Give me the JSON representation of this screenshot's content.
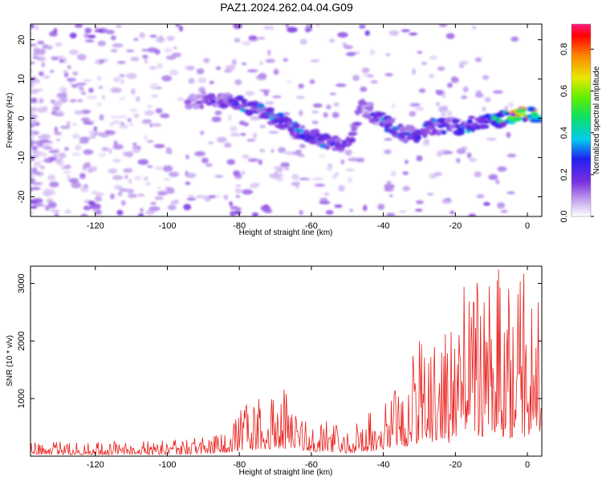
{
  "title": "PAZ1.2024.262.04.04.G09",
  "chart_data": [
    {
      "type": "heatmap",
      "xlabel": "Height of straight line (km)",
      "ylabel": "Frequency (Hz)",
      "xlim": [
        -138,
        4
      ],
      "ylim": [
        -25,
        24
      ],
      "x_ticks": [
        -120,
        -100,
        -80,
        -60,
        -40,
        -20,
        0
      ],
      "y_ticks": [
        -20,
        -10,
        0,
        10,
        20
      ],
      "colorbar": {
        "label": "Normalized spectral amplitude",
        "range": [
          0,
          0.92
        ],
        "ticks": [
          0.0,
          0.2,
          0.4,
          0.6,
          0.8
        ]
      },
      "ridge": {
        "x": [
          -92,
          -86,
          -80,
          -74,
          -68,
          -62,
          -56,
          -50,
          -46,
          -42,
          -38,
          -34,
          -30,
          -26,
          -22,
          -18,
          -14,
          -10,
          -6,
          -2,
          2
        ],
        "y": [
          4.5,
          5,
          4,
          2,
          -1,
          -4,
          -6,
          -7,
          3,
          0,
          -2,
          -4,
          -4,
          -2,
          -2,
          -2,
          -1,
          -1,
          0,
          1,
          1
        ],
        "amplitude": [
          0.2,
          0.25,
          0.3,
          0.32,
          0.3,
          0.35,
          0.3,
          0.25,
          0.2,
          0.3,
          0.32,
          0.3,
          0.3,
          0.32,
          0.35,
          0.35,
          0.38,
          0.4,
          0.5,
          0.9,
          0.7
        ]
      }
    },
    {
      "type": "line",
      "xlabel": "Height of straight line (km)",
      "ylabel": "SNR (10 * v/v)",
      "xlim": [
        -138,
        4
      ],
      "ylim": [
        0,
        3300
      ],
      "x_ticks": [
        -120,
        -100,
        -80,
        -60,
        -40,
        -20,
        0
      ],
      "y_ticks": [
        1000,
        2000,
        3000
      ],
      "color": "#e8201c",
      "envelope": {
        "x": [
          -138,
          -120,
          -100,
          -90,
          -85,
          -80,
          -75,
          -70,
          -65,
          -60,
          -55,
          -50,
          -45,
          -40,
          -35,
          -32,
          -30,
          -28,
          -25,
          -22,
          -20,
          -18,
          -15,
          -12,
          -10,
          -8,
          -5,
          -3,
          -1,
          1,
          3,
          4
        ],
        "y": [
          180,
          170,
          190,
          230,
          330,
          560,
          750,
          860,
          820,
          560,
          420,
          330,
          470,
          700,
          1000,
          1350,
          1450,
          1550,
          1500,
          1450,
          1800,
          2200,
          2350,
          2250,
          2100,
          2400,
          2000,
          2050,
          2200,
          2500,
          1500,
          1000
        ]
      },
      "peaks": [
        {
          "x": -8,
          "y": 3240
        },
        {
          "x": -14,
          "y": 3010
        },
        {
          "x": 3,
          "y": 2670
        },
        {
          "x": -30,
          "y": 2000
        },
        {
          "x": -67,
          "y": 1080
        }
      ]
    }
  ]
}
